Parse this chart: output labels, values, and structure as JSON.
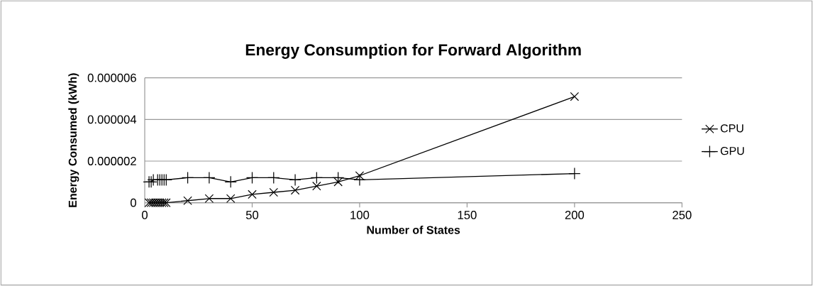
{
  "chart_data": {
    "type": "line",
    "title": "Energy Consumption for Forward Algorithm",
    "xlabel": "Number of States",
    "ylabel": "Energy Consumed (kWh)",
    "x": [
      2,
      3,
      4,
      5,
      6,
      7,
      8,
      9,
      10,
      20,
      30,
      40,
      50,
      60,
      70,
      80,
      90,
      100,
      200
    ],
    "series": [
      {
        "name": "CPU",
        "color": "#000000",
        "marker": "cross",
        "values": [
          0,
          0,
          0,
          0,
          0,
          0,
          0,
          0,
          0,
          1e-07,
          2e-07,
          2e-07,
          4e-07,
          5e-07,
          6e-07,
          8e-07,
          1e-06,
          1.3e-06,
          5.1e-06
        ]
      },
      {
        "name": "GPU",
        "color": "#000000",
        "marker": "plus",
        "values": [
          1e-06,
          1e-06,
          1.1e-06,
          null,
          1.1e-06,
          1.1e-06,
          1.1e-06,
          1.1e-06,
          1.1e-06,
          1.2e-06,
          1.2e-06,
          1e-06,
          1.2e-06,
          1.2e-06,
          1.1e-06,
          1.2e-06,
          1.2e-06,
          1.1e-06,
          1.4e-06
        ]
      }
    ],
    "xlim": [
      0,
      250
    ],
    "xticks": [
      0,
      50,
      100,
      150,
      200,
      250
    ],
    "ylim": [
      0,
      6e-06
    ],
    "yticks": [
      {
        "value": 0,
        "label": "0"
      },
      {
        "value": 2e-06,
        "label": "0.000002"
      },
      {
        "value": 4e-06,
        "label": "0.000004"
      },
      {
        "value": 6e-06,
        "label": "0.000006"
      }
    ],
    "grid": "y",
    "legend": "right",
    "line_style": "solid"
  }
}
